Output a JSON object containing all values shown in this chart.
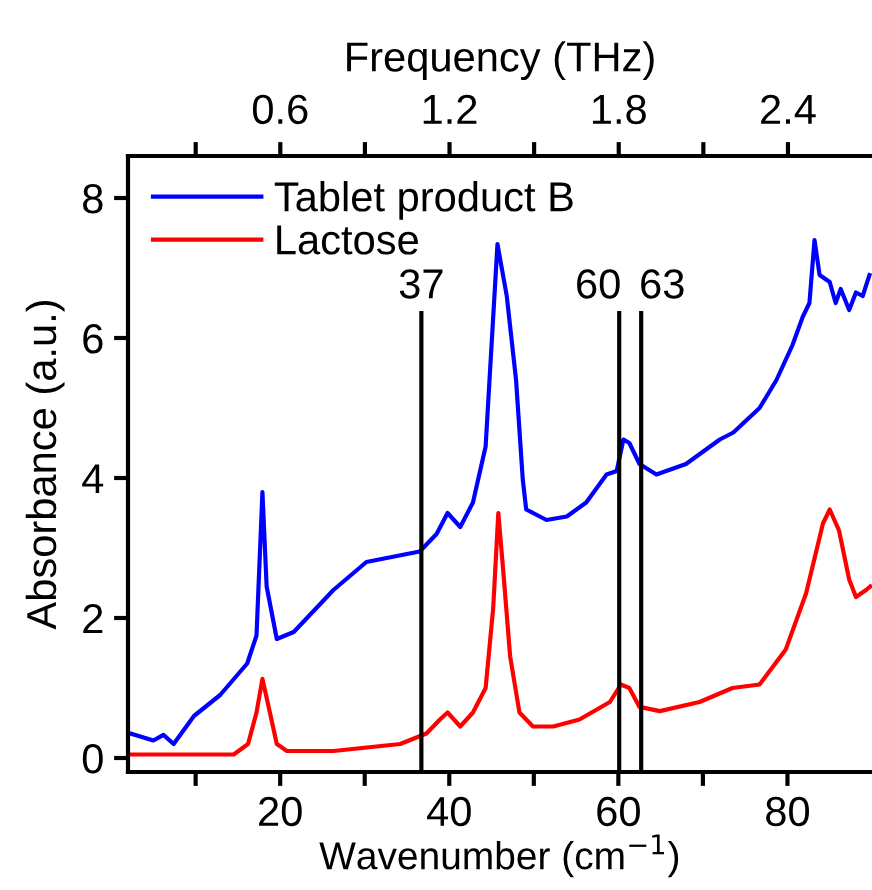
{
  "chart_data": {
    "type": "line",
    "xlabel": "Wavenumber (cm$^{−1}$)",
    "ylabel": "Absorbance (a.u.)",
    "x2label": "Frequency (THz)",
    "xlim": [
      2,
      90
    ],
    "ylim": [
      -0.2,
      8.6
    ],
    "x2lim": [
      0.06,
      2.698
    ],
    "xticks": [
      {
        "value": 10,
        "label": null
      },
      20,
      {
        "value": 30,
        "label": null
      },
      40,
      {
        "value": 50,
        "label": null
      },
      60,
      {
        "value": 70,
        "label": null
      },
      80
    ],
    "yticks": [
      0,
      2,
      4,
      6,
      8
    ],
    "x2ticks": [
      {
        "value": 0.3,
        "label": null
      },
      0.6,
      {
        "value": 0.9,
        "label": null
      },
      1.2,
      {
        "value": 1.5,
        "label": null
      },
      1.8,
      {
        "value": 2.1,
        "label": null
      },
      2.4
    ],
    "legend": "top left",
    "grid": false,
    "ref_lines": [
      {
        "axis": "x",
        "value": 36.7,
        "label": "37",
        "color": "#000000"
      },
      {
        "axis": "x",
        "value": 60.1,
        "label": "60",
        "color": "#000000"
      },
      {
        "axis": "x",
        "value": 62.7,
        "label": "63",
        "color": "#000000"
      }
    ],
    "series": [
      {
        "name": "Tablet product B",
        "color": "#0000ff",
        "x": [
          2.3,
          5.0,
          6.2,
          7.4,
          9.8,
          12.9,
          16.1,
          17.2,
          17.9,
          18.4,
          19.6,
          21.6,
          26.3,
          30.2,
          36.5,
          38.5,
          39.8,
          41.3,
          42.8,
          44.3,
          45.7,
          46.8,
          47.9,
          48.7,
          49.1,
          51.5,
          53.9,
          56.2,
          58.6,
          59.8,
          60.6,
          61.3,
          62.5,
          64.5,
          68.0,
          72.0,
          73.6,
          76.7,
          78.7,
          80.6,
          81.8,
          82.6,
          83.2,
          83.8,
          85.0,
          85.7,
          86.3,
          87.3,
          88.1,
          88.9,
          89.7
        ],
        "values": [
          0.35,
          0.25,
          0.33,
          0.2,
          0.6,
          0.9,
          1.35,
          1.75,
          3.8,
          2.45,
          1.7,
          1.8,
          2.4,
          2.8,
          2.95,
          3.2,
          3.5,
          3.3,
          3.65,
          4.45,
          7.34,
          6.6,
          5.4,
          3.97,
          3.55,
          3.4,
          3.45,
          3.65,
          4.05,
          4.1,
          4.55,
          4.5,
          4.2,
          4.05,
          4.2,
          4.55,
          4.65,
          5.0,
          5.4,
          5.9,
          6.3,
          6.5,
          7.4,
          6.9,
          6.8,
          6.5,
          6.7,
          6.4,
          6.65,
          6.6,
          6.9
        ]
      },
      {
        "name": "Lactose",
        "color": "#ff0000",
        "x": [
          2.3,
          14.5,
          16.2,
          17.2,
          17.9,
          18.6,
          19.6,
          20.8,
          26.3,
          34.2,
          37.3,
          38.9,
          39.8,
          41.3,
          42.8,
          44.3,
          45.2,
          45.8,
          46.4,
          47.2,
          48.3,
          49.9,
          52.3,
          55.4,
          59.0,
          60.3,
          61.3,
          62.5,
          64.9,
          69.6,
          73.5,
          76.7,
          79.8,
          82.2,
          84.2,
          85.0,
          86.1,
          87.3,
          88.1,
          89.3,
          89.8
        ],
        "values": [
          0.05,
          0.05,
          0.2,
          0.65,
          1.13,
          0.75,
          0.2,
          0.1,
          0.1,
          0.2,
          0.35,
          0.55,
          0.65,
          0.45,
          0.65,
          1.0,
          2.15,
          3.5,
          2.65,
          1.45,
          0.65,
          0.45,
          0.45,
          0.55,
          0.8,
          1.05,
          1.0,
          0.73,
          0.67,
          0.8,
          1.0,
          1.05,
          1.55,
          2.35,
          3.35,
          3.55,
          3.25,
          2.55,
          2.3,
          2.4,
          2.45
        ]
      }
    ]
  }
}
